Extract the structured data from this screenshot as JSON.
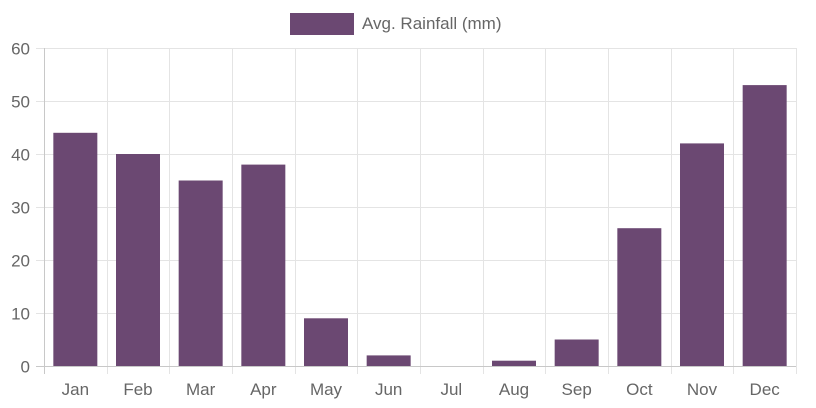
{
  "chart_data": {
    "type": "bar",
    "categories": [
      "Jan",
      "Feb",
      "Mar",
      "Apr",
      "May",
      "Jun",
      "Jul",
      "Aug",
      "Sep",
      "Oct",
      "Nov",
      "Dec"
    ],
    "series": [
      {
        "name": "Avg. Rainfall (mm)",
        "values": [
          44,
          40,
          35,
          38,
          9,
          2,
          0,
          1,
          5,
          26,
          42,
          53
        ],
        "color": "#6b4872"
      }
    ],
    "ylim": [
      0,
      60
    ],
    "yticks": [
      0,
      10,
      20,
      30,
      40,
      50,
      60
    ],
    "grid": true,
    "legend": "top-center"
  }
}
